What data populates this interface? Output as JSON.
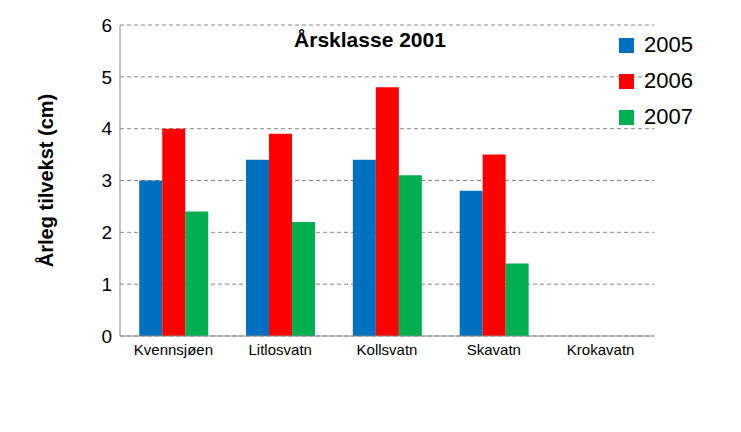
{
  "chart_data": {
    "type": "bar",
    "title": "Årsklasse 2001",
    "y_label": "Årleg tilvekst (cm)",
    "categories": [
      "Kvennsjøen",
      "Litlosvatn",
      "Kollsvatn",
      "Skavatn",
      "Krokavatn"
    ],
    "series": [
      {
        "name": "2005",
        "color": "#0070c0",
        "values": [
          3.0,
          3.4,
          3.4,
          2.8,
          null
        ]
      },
      {
        "name": "2006",
        "color": "#ff0000",
        "values": [
          4.0,
          3.9,
          4.8,
          3.5,
          null
        ]
      },
      {
        "name": "2007",
        "color": "#00b050",
        "values": [
          2.4,
          2.2,
          3.1,
          1.4,
          null
        ]
      }
    ],
    "ylim": [
      0,
      6
    ],
    "yticks": [
      0,
      1,
      2,
      3,
      4,
      5,
      6
    ],
    "grid": true,
    "legend": "top-right"
  }
}
